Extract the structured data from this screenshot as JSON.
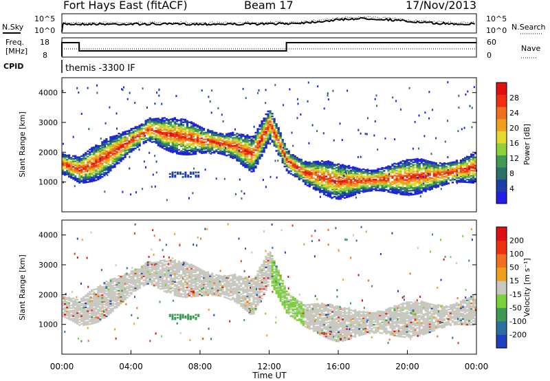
{
  "header": {
    "title": "Fort Hays East (fitACF)",
    "beam": "Beam 17",
    "date": "17/Nov/2013"
  },
  "status_panel": {
    "left_labels": [
      "N.Sky",
      "Freq.",
      "[MHz]",
      "CPID"
    ],
    "right_labels": [
      "N.Search",
      "Nave"
    ],
    "noise_ticks_left": [
      "10^5",
      "10^0"
    ],
    "noise_ticks_right": [
      "10^5",
      "10^0"
    ],
    "freq_ticks": [
      "18",
      "8"
    ],
    "nave_ticks": [
      "60",
      "0"
    ],
    "cpid_text": "themis -3300 IF"
  },
  "chart_data": [
    {
      "type": "heatmap",
      "name": "power",
      "ylabel": "Slant Range [km]",
      "xlabel": "",
      "ylim": [
        0,
        4500
      ],
      "xlim": [
        0,
        24
      ],
      "y_ticks": [
        "1000",
        "2000",
        "3000",
        "4000"
      ],
      "colorbar": {
        "label": "Power [dB]",
        "ticks": [
          "4",
          "8",
          "12",
          "16",
          "20",
          "24",
          "28"
        ],
        "range": [
          0,
          32
        ],
        "colors": [
          "#1f1fe6",
          "#1b3fa8",
          "#2d6f6a",
          "#3f9a55",
          "#8ed13a",
          "#e6d82e",
          "#f0a020",
          "#f07020",
          "#ee3010",
          "#e01010"
        ]
      },
      "band_centers_km": [
        [
          0,
          1600
        ],
        [
          1,
          1400
        ],
        [
          2,
          1650
        ],
        [
          4,
          2400
        ],
        [
          5,
          2750
        ],
        [
          6,
          2600
        ],
        [
          8,
          2400
        ],
        [
          10,
          2200
        ],
        [
          11,
          1900
        ],
        [
          12,
          2950
        ],
        [
          13,
          1700
        ],
        [
          14,
          1300
        ],
        [
          16,
          1000
        ],
        [
          18,
          1050
        ],
        [
          20,
          1150
        ],
        [
          22,
          1250
        ],
        [
          24,
          1500
        ]
      ],
      "grid": false
    },
    {
      "type": "heatmap",
      "name": "velocity",
      "ylabel": "Slant Range [km]",
      "xlabel": "Time UT",
      "ylim": [
        0,
        4500
      ],
      "xlim": [
        0,
        24
      ],
      "x_ticks": [
        "00:00",
        "04:00",
        "08:00",
        "12:00",
        "16:00",
        "20:00",
        "00:00"
      ],
      "y_ticks": [
        "1000",
        "2000",
        "3000",
        "4000"
      ],
      "colorbar": {
        "label": "Velocity [m s⁻¹]",
        "ticks": [
          "200",
          "100",
          "50",
          "15",
          "-15",
          "-50",
          "-100",
          "-200"
        ],
        "range": [
          -250,
          250
        ],
        "colors": [
          "#1e3fbe",
          "#2b6fa0",
          "#3d9a55",
          "#7ad23a",
          "#c8c8c0",
          "#f0a020",
          "#f07020",
          "#ee3010",
          "#e01010"
        ]
      },
      "grid": false
    }
  ]
}
